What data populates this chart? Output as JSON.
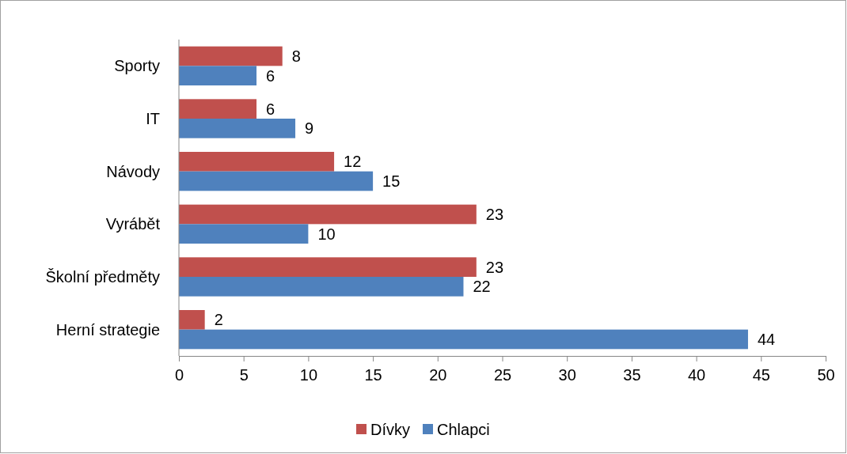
{
  "chart_data": {
    "type": "bar",
    "orientation": "horizontal",
    "categories": [
      "Sporty",
      "IT",
      "Návody",
      "Vyrábět",
      "Školní předměty",
      "Herní strategie"
    ],
    "series": [
      {
        "name": "Dívky",
        "color": "#c0504d",
        "values": [
          8,
          6,
          12,
          23,
          23,
          2
        ]
      },
      {
        "name": "Chlapci",
        "color": "#4f81bd",
        "values": [
          6,
          9,
          15,
          10,
          22,
          44
        ]
      }
    ],
    "xlim": [
      0,
      50
    ],
    "xticks": [
      0,
      5,
      10,
      15,
      20,
      25,
      30,
      35,
      40,
      45,
      50
    ],
    "data_labels": true,
    "legend": "bottom",
    "grid": false
  }
}
